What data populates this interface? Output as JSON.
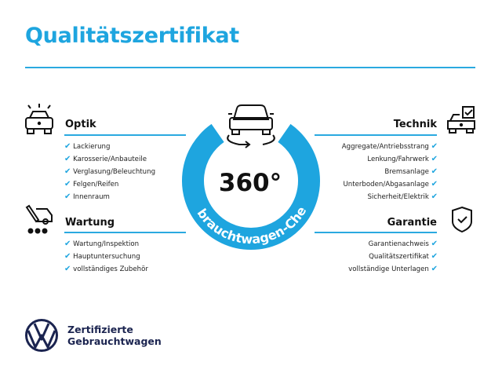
{
  "title": "Qualitätszertifikat",
  "accent": "#1ea5df",
  "center": {
    "value": "360°",
    "ring_text": "Gebrauchtwagen-Check",
    "icon": "car-rotate-icon"
  },
  "sections": {
    "optik": {
      "title": "Optik",
      "icon": "car-lights-icon",
      "items": [
        "Lackierung",
        "Karosserie/Anbauteile",
        "Verglasung/Beleuchtung",
        "Felgen/Reifen",
        "Innenraum"
      ]
    },
    "wartung": {
      "title": "Wartung",
      "icon": "service-tools-icon",
      "items": [
        "Wartung/Inspektion",
        "Hauptuntersuchung",
        "vollständiges Zubehör"
      ]
    },
    "technik": {
      "title": "Technik",
      "icon": "car-checkbox-icon",
      "items": [
        "Aggregate/Antriebsstrang",
        "Lenkung/Fahrwerk",
        "Bremsanlage",
        "Unterboden/Abgasanlage",
        "Sicherheit/Elektrik"
      ]
    },
    "garantie": {
      "title": "Garantie",
      "icon": "shield-check-icon",
      "items": [
        "Garantienachweis",
        "Qualitätszertifikat",
        "vollständige Unterlagen"
      ]
    }
  },
  "brand": {
    "line1": "Zertifizierte",
    "line2": "Gebrauchtwagen",
    "logo": "VW"
  },
  "check": "✔"
}
